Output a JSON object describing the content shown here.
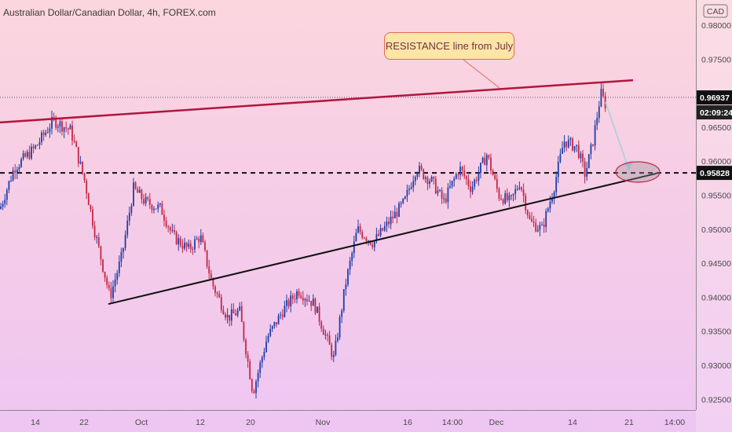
{
  "header": {
    "symbol_title": "Australian Dollar/Canadian Dollar, 4h, FOREX.com"
  },
  "annotation": {
    "callout_text": "RESISTANCE line from July"
  },
  "colors": {
    "up_candle": "#1e3ea8",
    "down_candle": "#c52645",
    "resistance_line": "#b0163d",
    "support_line": "#111111",
    "price_tag_bg": "#111111",
    "arrow": "#b9cfe0"
  },
  "chart_data": {
    "type": "candlestick",
    "title": "Australian Dollar/Canadian Dollar, 4h, FOREX.com",
    "currency": "CAD",
    "ylim": [
      0.9245,
      0.9822
    ],
    "y_ticks": [
      "0.98000",
      "0.97500",
      "0.97000",
      "0.96500",
      "0.96000",
      "0.95500",
      "0.95000",
      "0.94500",
      "0.94000",
      "0.93500",
      "0.93000",
      "0.92500"
    ],
    "x_ticks": [
      "14",
      "22",
      "Oct",
      "12",
      "20",
      "Nov",
      "16",
      "14:00",
      "Dec",
      "14",
      "21",
      "14:00"
    ],
    "last_price": "0.96937",
    "countdown": "02:09:24",
    "horizontal_level": "0.95828",
    "price_path_waypoints": [
      [
        0,
        0.953
      ],
      [
        18,
        0.959
      ],
      [
        45,
        0.962
      ],
      [
        68,
        0.966
      ],
      [
        90,
        0.9645
      ],
      [
        108,
        0.957
      ],
      [
        120,
        0.95
      ],
      [
        140,
        0.94
      ],
      [
        155,
        0.946
      ],
      [
        170,
        0.956
      ],
      [
        185,
        0.954
      ],
      [
        205,
        0.953
      ],
      [
        220,
        0.949
      ],
      [
        240,
        0.947
      ],
      [
        255,
        0.949
      ],
      [
        270,
        0.942
      ],
      [
        290,
        0.937
      ],
      [
        305,
        0.938
      ],
      [
        322,
        0.926
      ],
      [
        340,
        0.934
      ],
      [
        360,
        0.938
      ],
      [
        380,
        0.941
      ],
      [
        400,
        0.939
      ],
      [
        425,
        0.931
      ],
      [
        440,
        0.942
      ],
      [
        455,
        0.95
      ],
      [
        475,
        0.948
      ],
      [
        495,
        0.951
      ],
      [
        515,
        0.954
      ],
      [
        530,
        0.959
      ],
      [
        550,
        0.957
      ],
      [
        565,
        0.954
      ],
      [
        585,
        0.959
      ],
      [
        600,
        0.956
      ],
      [
        620,
        0.961
      ],
      [
        635,
        0.955
      ],
      [
        650,
        0.954
      ],
      [
        662,
        0.957
      ],
      [
        675,
        0.951
      ],
      [
        690,
        0.95
      ],
      [
        705,
        0.956
      ],
      [
        718,
        0.963
      ],
      [
        735,
        0.962
      ],
      [
        745,
        0.958
      ],
      [
        755,
        0.963
      ],
      [
        765,
        0.97
      ],
      [
        772,
        0.968
      ]
    ],
    "trendlines": [
      {
        "name": "resistance",
        "points": [
          [
            0,
            0.9657
          ],
          [
            806,
            0.9719
          ]
        ]
      },
      {
        "name": "support",
        "points": [
          [
            138,
            0.939
          ],
          [
            836,
            0.9582
          ]
        ]
      }
    ],
    "grid": false
  }
}
